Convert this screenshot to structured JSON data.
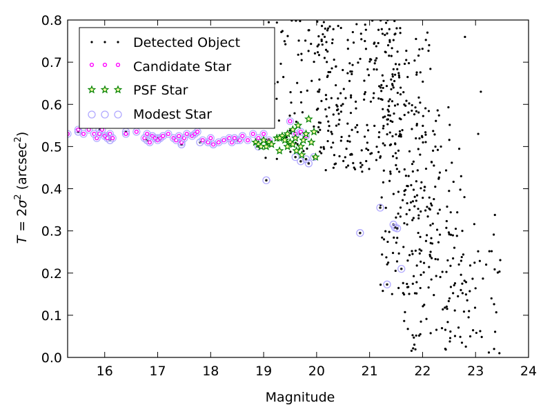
{
  "chart_data": {
    "type": "scatter",
    "xlabel": "Magnitude",
    "ylabel_parts": {
      "pre": "T",
      "eq": " = 2",
      "sigma": "σ",
      "sup1": "2",
      "unit": " (arcsec",
      "sup2": "2",
      "close": ")"
    },
    "xlim": [
      15.3,
      24
    ],
    "ylim": [
      0.0,
      0.8
    ],
    "xticks": [
      "16",
      "17",
      "18",
      "19",
      "20",
      "21",
      "22",
      "23",
      "24"
    ],
    "yticks": [
      "0.0",
      "0.1",
      "0.2",
      "0.3",
      "0.4",
      "0.5",
      "0.6",
      "0.7",
      "0.8"
    ],
    "grid": false,
    "legend_position": "top-left",
    "legend": [
      {
        "label": "Detected Object",
        "marker": "dot",
        "color": "#000000"
      },
      {
        "label": "Candidate Star",
        "marker": "small-circle",
        "color": "#ff00ff"
      },
      {
        "label": "PSF Star",
        "marker": "star",
        "color": "#008000"
      },
      {
        "label": "Modest Star",
        "marker": "open-circle",
        "color": "#b0a8ff"
      }
    ],
    "series": [
      {
        "name": "Detected Object",
        "generator": {
          "ranges": [
            {
              "n": 80,
              "x": [
                19.0,
                20.4
              ],
              "y": [
                0.47,
                0.8
              ]
            },
            {
              "n": 220,
              "x": [
                20.0,
                21.6
              ],
              "y": [
                0.44,
                0.8
              ]
            },
            {
              "n": 170,
              "x": [
                21.2,
                22.2
              ],
              "y": [
                0.15,
                0.8
              ]
            },
            {
              "n": 140,
              "x": [
                21.6,
                22.8
              ],
              "y": [
                0.01,
                0.6
              ]
            },
            {
              "n": 50,
              "x": [
                22.4,
                23.5
              ],
              "y": [
                0.0,
                0.35
              ]
            }
          ],
          "seed": 7
        },
        "points": [
          [
            23.1,
            0.63
          ],
          [
            23.05,
            0.53
          ],
          [
            22.8,
            0.76
          ],
          [
            23.3,
            0.14
          ],
          [
            23.2,
            0.22
          ],
          [
            23.45,
            0.01
          ],
          [
            23.35,
            0.02
          ],
          [
            22.9,
            0.05
          ],
          [
            22.75,
            0.3
          ],
          [
            22.6,
            0.26
          ]
        ]
      },
      {
        "name": "Candidate Star",
        "points": [
          [
            15.3,
            0.53
          ],
          [
            15.5,
            0.54
          ],
          [
            15.6,
            0.53
          ],
          [
            15.7,
            0.54
          ],
          [
            15.8,
            0.53
          ],
          [
            15.85,
            0.52
          ],
          [
            15.9,
            0.53
          ],
          [
            15.95,
            0.54
          ],
          [
            16.0,
            0.525
          ],
          [
            16.05,
            0.52
          ],
          [
            16.1,
            0.53
          ],
          [
            16.15,
            0.52
          ],
          [
            16.4,
            0.53
          ],
          [
            16.6,
            0.535
          ],
          [
            16.75,
            0.52
          ],
          [
            16.8,
            0.53
          ],
          [
            16.85,
            0.51
          ],
          [
            16.9,
            0.525
          ],
          [
            16.95,
            0.52
          ],
          [
            17.0,
            0.515
          ],
          [
            17.05,
            0.52
          ],
          [
            17.1,
            0.525
          ],
          [
            17.2,
            0.53
          ],
          [
            17.3,
            0.52
          ],
          [
            17.35,
            0.515
          ],
          [
            17.4,
            0.525
          ],
          [
            17.45,
            0.51
          ],
          [
            17.5,
            0.52
          ],
          [
            17.55,
            0.53
          ],
          [
            17.65,
            0.525
          ],
          [
            17.7,
            0.53
          ],
          [
            17.75,
            0.535
          ],
          [
            17.85,
            0.515
          ],
          [
            17.95,
            0.51
          ],
          [
            18.0,
            0.52
          ],
          [
            18.05,
            0.505
          ],
          [
            18.15,
            0.51
          ],
          [
            18.25,
            0.515
          ],
          [
            18.35,
            0.52
          ],
          [
            18.4,
            0.51
          ],
          [
            18.45,
            0.52
          ],
          [
            18.55,
            0.515
          ],
          [
            18.6,
            0.525
          ],
          [
            18.7,
            0.515
          ],
          [
            18.8,
            0.53
          ],
          [
            18.9,
            0.52
          ],
          [
            19.0,
            0.53
          ],
          [
            19.1,
            0.515
          ],
          [
            19.5,
            0.56
          ],
          [
            19.6,
            0.53
          ],
          [
            19.7,
            0.535
          ],
          [
            19.8,
            0.525
          ]
        ]
      },
      {
        "name": "PSF Star",
        "points": [
          [
            18.85,
            0.51
          ],
          [
            18.9,
            0.505
          ],
          [
            18.95,
            0.5
          ],
          [
            19.0,
            0.515
          ],
          [
            19.05,
            0.5
          ],
          [
            19.1,
            0.51
          ],
          [
            19.15,
            0.505
          ],
          [
            19.25,
            0.52
          ],
          [
            19.3,
            0.49
          ],
          [
            19.35,
            0.525
          ],
          [
            19.4,
            0.515
          ],
          [
            19.45,
            0.53
          ],
          [
            19.5,
            0.51
          ],
          [
            19.55,
            0.54
          ],
          [
            19.6,
            0.52
          ],
          [
            19.62,
            0.49
          ],
          [
            19.65,
            0.55
          ],
          [
            19.7,
            0.5
          ],
          [
            19.72,
            0.48
          ],
          [
            19.75,
            0.515
          ],
          [
            19.8,
            0.53
          ],
          [
            19.85,
            0.565
          ],
          [
            19.9,
            0.51
          ],
          [
            19.95,
            0.535
          ],
          [
            19.98,
            0.475
          ],
          [
            19.3,
            0.52
          ],
          [
            19.45,
            0.5
          ],
          [
            19.55,
            0.505
          ]
        ]
      },
      {
        "name": "Modest Star",
        "points": [
          [
            15.5,
            0.535
          ],
          [
            15.9,
            0.54
          ],
          [
            16.05,
            0.525
          ],
          [
            16.1,
            0.515
          ],
          [
            16.4,
            0.535
          ],
          [
            16.8,
            0.515
          ],
          [
            17.0,
            0.52
          ],
          [
            17.45,
            0.505
          ],
          [
            17.8,
            0.51
          ],
          [
            18.05,
            0.505
          ],
          [
            18.5,
            0.515
          ],
          [
            18.9,
            0.5
          ],
          [
            19.05,
            0.42
          ],
          [
            19.6,
            0.475
          ],
          [
            19.7,
            0.465
          ],
          [
            19.8,
            0.47
          ],
          [
            19.85,
            0.46
          ],
          [
            19.95,
            0.475
          ],
          [
            20.82,
            0.295
          ],
          [
            21.2,
            0.355
          ],
          [
            21.33,
            0.173
          ],
          [
            21.45,
            0.315
          ],
          [
            21.48,
            0.308
          ],
          [
            21.52,
            0.306
          ],
          [
            21.6,
            0.21
          ]
        ]
      }
    ]
  }
}
